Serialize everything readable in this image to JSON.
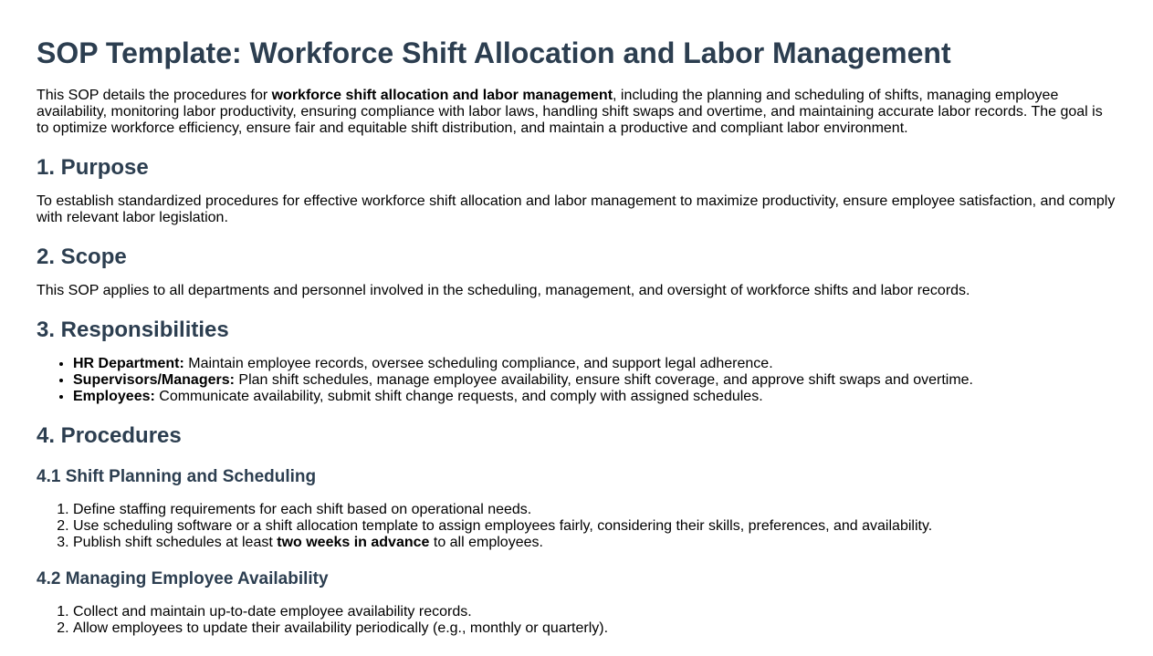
{
  "title": "SOP Template: Workforce Shift Allocation and Labor Management",
  "intro": {
    "before": "This SOP details the procedures for ",
    "bold": "workforce shift allocation and labor management",
    "after": ", including the planning and scheduling of shifts, managing employee availability, monitoring labor productivity, ensuring compliance with labor laws, handling shift swaps and overtime, and maintaining accurate labor records. The goal is to optimize workforce efficiency, ensure fair and equitable shift distribution, and maintain a productive and compliant labor environment."
  },
  "purpose": {
    "heading": "1. Purpose",
    "text": "To establish standardized procedures for effective workforce shift allocation and labor management to maximize productivity, ensure employee satisfaction, and comply with relevant labor legislation."
  },
  "scope": {
    "heading": "2. Scope",
    "text": "This SOP applies to all departments and personnel involved in the scheduling, management, and oversight of workforce shifts and labor records."
  },
  "responsibilities": {
    "heading": "3. Responsibilities",
    "items": [
      {
        "label": "HR Department:",
        "text": "Maintain employee records, oversee scheduling compliance, and support legal adherence."
      },
      {
        "label": "Supervisors/Managers:",
        "text": "Plan shift schedules, manage employee availability, ensure shift coverage, and approve shift swaps and overtime."
      },
      {
        "label": "Employees:",
        "text": "Communicate availability, submit shift change requests, and comply with assigned schedules."
      }
    ]
  },
  "procedures": {
    "heading": "4. Procedures",
    "planning": {
      "heading": "4.1 Shift Planning and Scheduling",
      "items": [
        "Define staffing requirements for each shift based on operational needs.",
        "Use scheduling software or a shift allocation template to assign employees fairly, considering their skills, preferences, and availability."
      ],
      "last": {
        "before": "Publish shift schedules at least ",
        "bold": "two weeks in advance",
        "after": " to all employees."
      }
    },
    "availability": {
      "heading": "4.2 Managing Employee Availability",
      "items": [
        "Collect and maintain up-to-date employee availability records.",
        "Allow employees to update their availability periodically (e.g., monthly or quarterly)."
      ]
    }
  }
}
